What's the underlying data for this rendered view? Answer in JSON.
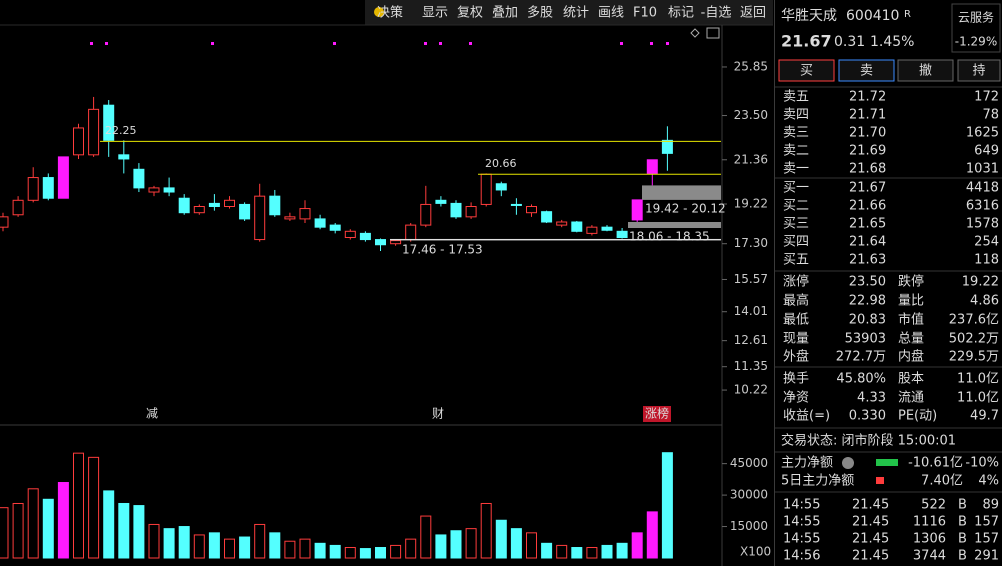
{
  "toolbar": [
    "决策",
    "显示",
    "复权",
    "叠加",
    "多股",
    "统计",
    "画线",
    "F10",
    "标记",
    "-自选",
    "返回"
  ],
  "chart_data": [
    {
      "type": "candlestick",
      "open": [
        18.1,
        18.7,
        19.4,
        20.5,
        19.5,
        21.6,
        21.6,
        24.0,
        21.6,
        20.9,
        19.8,
        20.0,
        19.5,
        18.8,
        19.25,
        19.1,
        19.2,
        17.5,
        19.6,
        18.5,
        18.5,
        18.5,
        18.2,
        17.6,
        17.8,
        17.5,
        17.3,
        17.5,
        18.2,
        19.4,
        19.25,
        18.6,
        19.2,
        20.2,
        19.2,
        18.8,
        18.85,
        18.2,
        18.35,
        17.8,
        18.1,
        17.9,
        18.45,
        20.7,
        22.3
      ],
      "high": [
        18.8,
        19.6,
        21.0,
        20.7,
        21.5,
        23.1,
        24.4,
        24.25,
        22.3,
        21.2,
        20.1,
        20.5,
        19.7,
        19.2,
        19.7,
        19.6,
        19.3,
        20.2,
        19.9,
        18.8,
        19.4,
        18.7,
        18.3,
        18.0,
        17.9,
        17.55,
        17.5,
        18.3,
        20.1,
        19.6,
        19.4,
        19.3,
        20.7,
        20.3,
        19.5,
        19.2,
        18.9,
        18.45,
        18.4,
        18.2,
        18.2,
        18.06,
        19.42,
        21.36,
        22.98
      ],
      "low": [
        17.9,
        18.6,
        19.3,
        19.4,
        19.5,
        21.4,
        21.5,
        21.5,
        20.7,
        19.8,
        19.6,
        19.6,
        18.7,
        18.7,
        18.9,
        19.0,
        18.4,
        17.4,
        18.6,
        18.4,
        18.3,
        18.0,
        17.8,
        17.5,
        17.4,
        16.95,
        17.2,
        17.4,
        18.1,
        19.1,
        18.5,
        18.5,
        19.1,
        19.6,
        18.7,
        18.6,
        18.3,
        18.1,
        17.85,
        17.7,
        17.9,
        17.55,
        18.35,
        20.12,
        20.83
      ],
      "close": [
        18.6,
        19.4,
        20.5,
        19.5,
        21.5,
        22.9,
        23.8,
        22.3,
        21.4,
        20.0,
        20.0,
        19.8,
        18.8,
        19.1,
        19.1,
        19.4,
        18.5,
        19.6,
        18.7,
        18.6,
        19.0,
        18.1,
        17.95,
        17.9,
        17.5,
        17.25,
        17.45,
        18.2,
        19.2,
        19.25,
        18.6,
        19.1,
        20.66,
        19.9,
        19.15,
        19.1,
        18.35,
        18.35,
        17.9,
        18.1,
        17.95,
        17.6,
        19.42,
        21.36,
        21.67
      ],
      "colors": [
        "#ff3c3c",
        "#ff3c3c",
        "#ff3c3c",
        "#54ffff",
        "#ff1aff",
        "#ff3c3c",
        "#ff3c3c",
        "#54ffff",
        "#54ffff",
        "#54ffff",
        "#ff3c3c",
        "#54ffff",
        "#54ffff",
        "#ff3c3c",
        "#54ffff",
        "#ff3c3c",
        "#54ffff",
        "#ff3c3c",
        "#54ffff",
        "#ff3c3c",
        "#ff3c3c",
        "#54ffff",
        "#54ffff",
        "#ff3c3c",
        "#54ffff",
        "#54ffff",
        "#ff3c3c",
        "#ff3c3c",
        "#ff3c3c",
        "#54ffff",
        "#54ffff",
        "#ff3c3c",
        "#ff3c3c",
        "#54ffff",
        "#54ffff",
        "#ff3c3c",
        "#54ffff",
        "#ff3c3c",
        "#54ffff",
        "#ff3c3c",
        "#54ffff",
        "#54ffff",
        "#ff1aff",
        "#ff1aff",
        "#54ffff"
      ],
      "hollow_color": "#ff3c3c",
      "ylim": [
        8.53,
        27.88
      ],
      "yticks": [
        25.85,
        {
          "value": 23.5,
          "label": "23.50"
        },
        21.36,
        19.22,
        {
          "value": 17.3,
          "label": "17.30"
        },
        15.57,
        14.01,
        12.61,
        11.35,
        10.22
      ],
      "levels": [
        22.25,
        20.66
      ],
      "gaps": [
        {
          "label": "19.42 - 20.12",
          "low": 19.42,
          "high": 20.12
        },
        {
          "label": "18.06 - 18.35",
          "low": 18.06,
          "high": 18.35
        },
        {
          "label": "17.46 - 17.53",
          "low": 17.46,
          "high": 17.53
        }
      ],
      "events": [
        "减",
        "财",
        "涨榜"
      ]
    },
    {
      "type": "bar",
      "values": [
        24000,
        26000,
        33000,
        28000,
        36000,
        50000,
        48000,
        32000,
        26000,
        25000,
        16000,
        14000,
        15000,
        11000,
        12000,
        9000,
        10000,
        16000,
        12000,
        8000,
        9000,
        7000,
        6000,
        5000,
        4500,
        5000,
        6000,
        9000,
        20000,
        11000,
        13000,
        14000,
        26000,
        18000,
        14000,
        12000,
        7000,
        6000,
        5000,
        5000,
        6000,
        7000,
        12000,
        22000,
        50220
      ],
      "ylim": [
        0,
        62000
      ],
      "yticks": [
        15000,
        30000,
        45000
      ],
      "unit": "X100"
    }
  ],
  "quote": {
    "name": "华胜天成",
    "code": "600410",
    "badge": "R",
    "sector": "云服务",
    "sector_change": "-1.29%",
    "price": "21.67",
    "change": "0.31",
    "change_pct": "1.45%",
    "buttons": [
      "买",
      "卖",
      "撤",
      "持"
    ],
    "asks": [
      [
        "卖五",
        "21.72",
        "172"
      ],
      [
        "卖四",
        "21.71",
        "78"
      ],
      [
        "卖三",
        "21.70",
        "1625"
      ],
      [
        "卖二",
        "21.69",
        "649"
      ],
      [
        "卖一",
        "21.68",
        "1031"
      ]
    ],
    "bids": [
      [
        "买一",
        "21.67",
        "4418"
      ],
      [
        "买二",
        "21.66",
        "6316"
      ],
      [
        "买三",
        "21.65",
        "1578"
      ],
      [
        "买四",
        "21.64",
        "254"
      ],
      [
        "买五",
        "21.63",
        "118"
      ]
    ],
    "stats": [
      [
        "涨停",
        "23.50",
        "跌停",
        "19.22"
      ],
      [
        "最高",
        "22.98",
        "量比",
        "4.86"
      ],
      [
        "最低",
        "20.83",
        "市值",
        "237.6亿"
      ],
      [
        "现量",
        "53903",
        "总量",
        "502.2万"
      ],
      [
        "外盘",
        "272.7万",
        "内盘",
        "229.5万"
      ],
      [
        "换手",
        "45.80%",
        "股本",
        "11.0亿"
      ],
      [
        "净资",
        "4.33",
        "流通",
        "11.0亿"
      ],
      [
        "收益(=)",
        "0.330",
        "PE(动)",
        "49.7"
      ]
    ],
    "status": "交易状态: 闭市阶段 15:00:01",
    "flows": [
      [
        "主力净额",
        "-10.61亿",
        "-10%"
      ],
      [
        "5日主力净额",
        "7.40亿",
        "4%"
      ]
    ],
    "ticks": [
      [
        "14:55",
        "21.45",
        "522",
        "B",
        "89"
      ],
      [
        "14:55",
        "21.45",
        "1116",
        "B",
        "157"
      ],
      [
        "14:55",
        "21.45",
        "1306",
        "B",
        "157"
      ],
      [
        "14:56",
        "21.45",
        "3744",
        "B",
        "291"
      ]
    ]
  }
}
